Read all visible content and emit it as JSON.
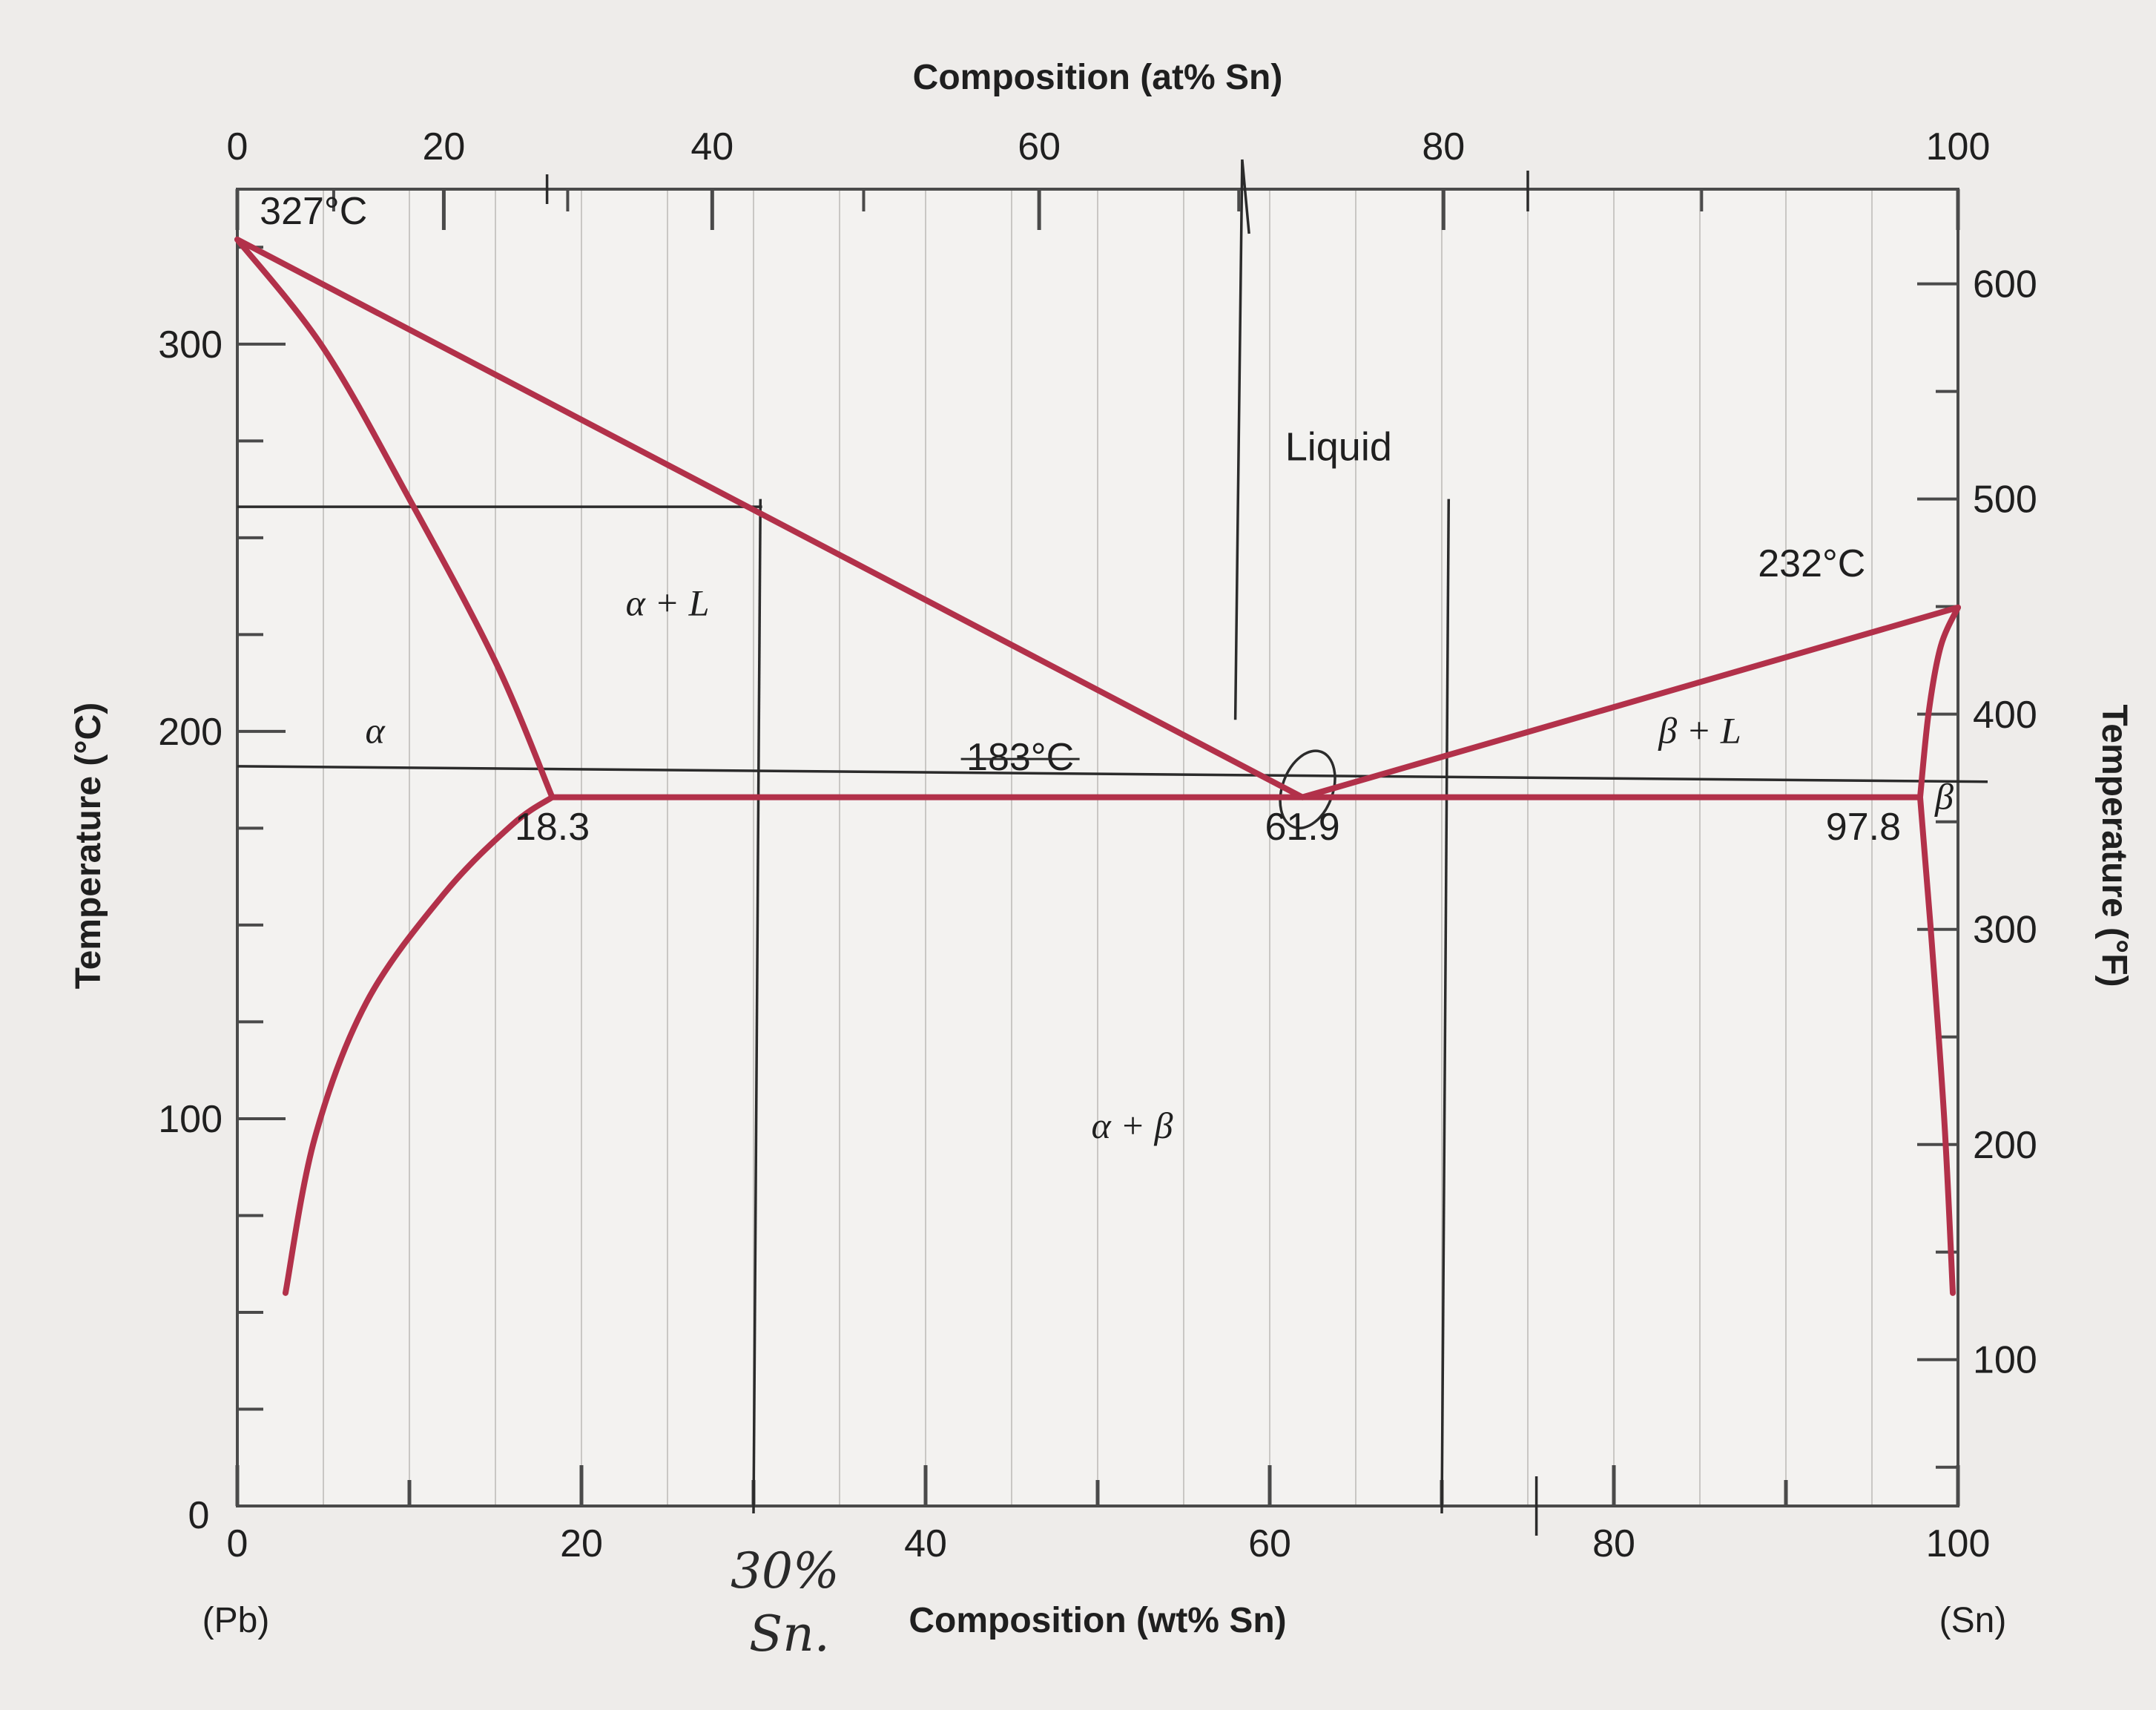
{
  "chart_data": {
    "type": "line",
    "title": "",
    "x_bottom_label": "Composition (wt% Sn)",
    "x_top_label": "Composition (at% Sn)",
    "y_left_label": "Temperature (°C)",
    "y_right_label": "Temperature (°F)",
    "x_range": [
      0,
      100
    ],
    "y_range": [
      0,
      340
    ],
    "grid": true,
    "x_ticks": [
      0,
      20,
      40,
      60,
      80,
      100
    ],
    "y_ticks": [
      0,
      100,
      200,
      300
    ],
    "y_left_zero_label": "0",
    "top_ticks": [
      {
        "label": "0",
        "x": 0
      },
      {
        "label": "20",
        "x": 12.0
      },
      {
        "label": "40",
        "x": 27.6
      },
      {
        "label": "60",
        "x": 46.6
      },
      {
        "label": "80",
        "x": 70.1
      },
      {
        "label": "100",
        "x": 100
      }
    ],
    "right_ticks": [
      {
        "label": "100",
        "y": 37.8
      },
      {
        "label": "200",
        "y": 93.3
      },
      {
        "label": "300",
        "y": 148.9
      },
      {
        "label": "400",
        "y": 204.4
      },
      {
        "label": "500",
        "y": 260.0
      },
      {
        "label": "600",
        "y": 315.6
      }
    ],
    "end_labels": {
      "left": "(Pb)",
      "right": "(Sn)"
    },
    "series": [
      {
        "x": [
          0,
          61.9
        ],
        "y": [
          327,
          183
        ]
      },
      {
        "x": [
          61.9,
          100
        ],
        "y": [
          183,
          232
        ]
      },
      {
        "x": [
          0,
          5,
          10,
          15,
          18.3
        ],
        "y": [
          327,
          299,
          260,
          218,
          183
        ]
      },
      {
        "x": [
          2.8,
          4.5,
          7.5,
          12,
          16,
          18.3
        ],
        "y": [
          55,
          95,
          130,
          158,
          176,
          183
        ]
      },
      {
        "x": [
          18.3,
          97.8
        ],
        "y": [
          183,
          183
        ]
      },
      {
        "x": [
          100,
          99.0,
          98.3,
          97.8
        ],
        "y": [
          232,
          222,
          205,
          183
        ]
      },
      {
        "x": [
          97.8,
          98.4,
          99.2,
          99.7
        ],
        "y": [
          183,
          150,
          100,
          55
        ]
      }
    ],
    "region_labels": [
      {
        "text": "Liquid",
        "x": 64,
        "y": 270
      },
      {
        "text": "α + L",
        "x": 25,
        "y": 230
      },
      {
        "text": "α",
        "x": 8,
        "y": 197
      },
      {
        "text": "β + L",
        "x": 85,
        "y": 197
      },
      {
        "text": "β",
        "x": 99.2,
        "y": 180
      },
      {
        "text": "α + β",
        "x": 52,
        "y": 95
      }
    ],
    "annotations": [
      {
        "text": "327°C",
        "x": 1.3,
        "y": 331
      },
      {
        "text": "232°C",
        "x": 91.5,
        "y": 240
      },
      {
        "text": "183°C",
        "x": 45.5,
        "y": 190
      },
      {
        "text": "18.3",
        "x": 18.3,
        "y": 172
      },
      {
        "text": "61.9",
        "x": 61.9,
        "y": 172
      },
      {
        "text": "97.8",
        "x": 94.5,
        "y": 172
      }
    ],
    "handwritten": {
      "line1": "30%",
      "line2": "Sn.",
      "guide_temperature": 258,
      "verticals_x": [
        30,
        70
      ],
      "top_scribble_x": 58,
      "horizontal_y": 191
    }
  }
}
